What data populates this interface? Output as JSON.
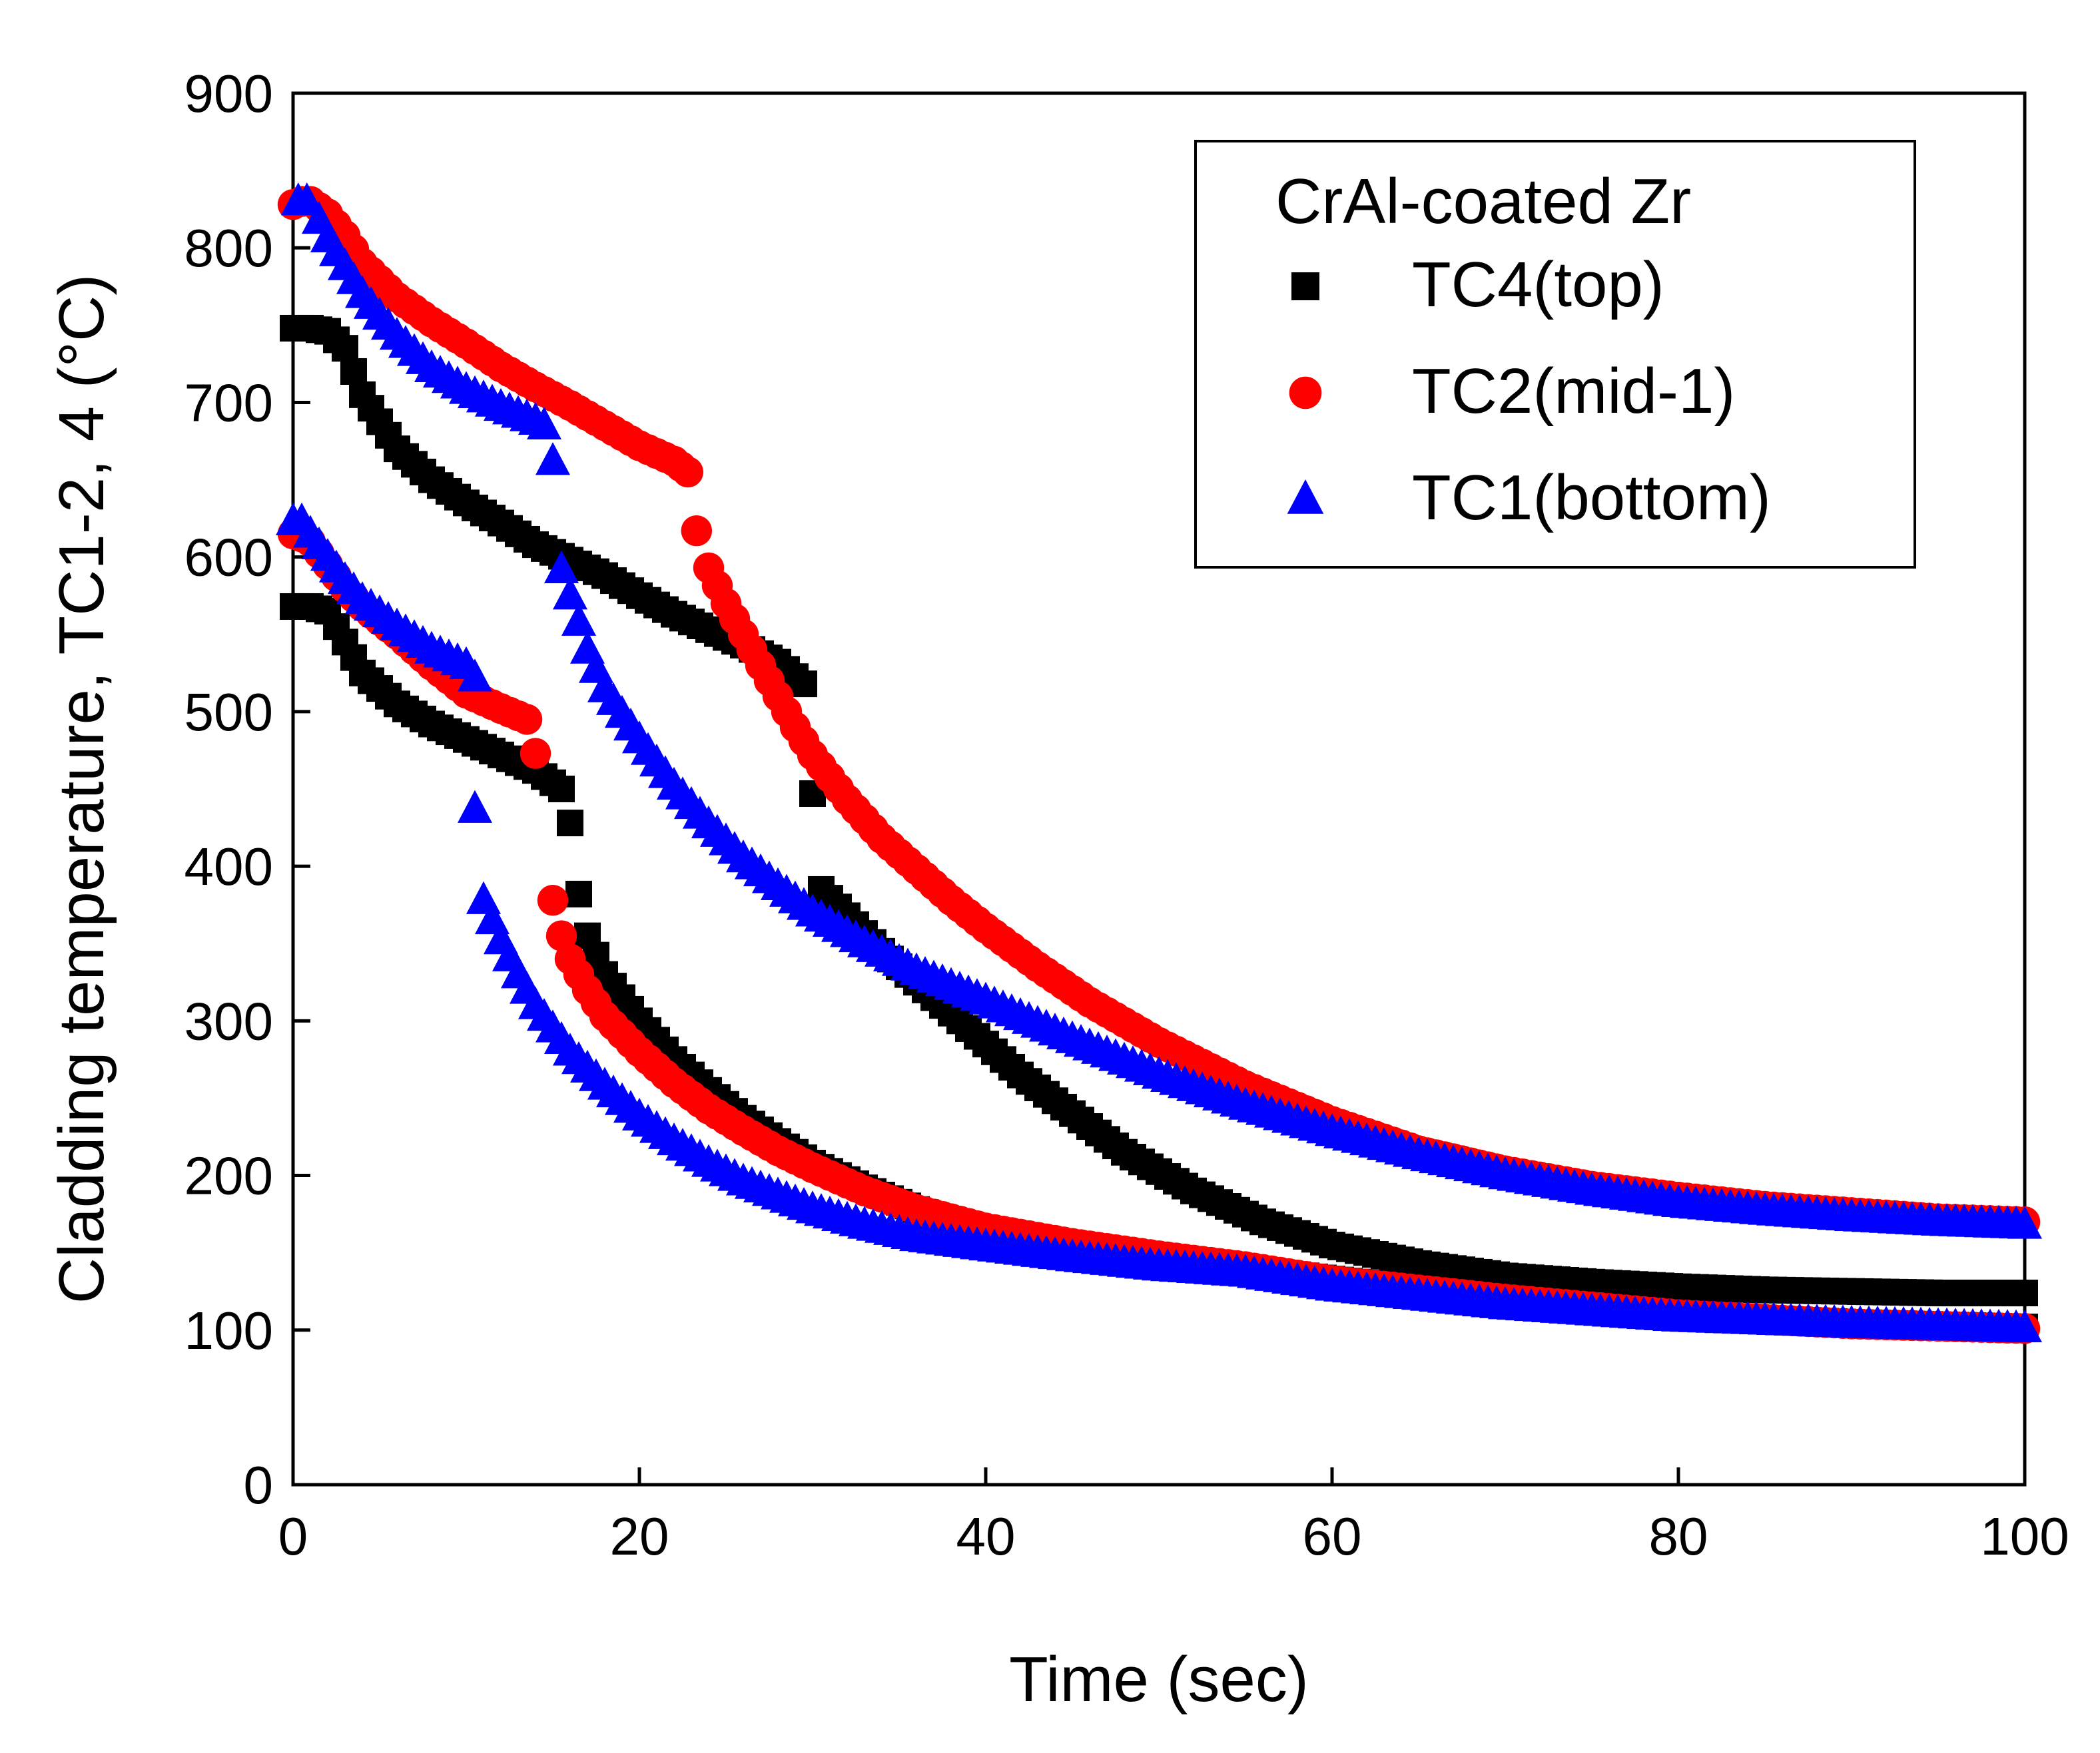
{
  "chart_data": {
    "type": "scatter",
    "title": "",
    "xlabel": "Time (sec)",
    "ylabel": "Cladding temperature,  TC1-2, 4 (°C)",
    "xlim": [
      0,
      100
    ],
    "ylim": [
      0,
      900
    ],
    "xticks": [
      "0",
      "20",
      "40",
      "60",
      "80",
      "100"
    ],
    "yticks": [
      "0",
      "100",
      "200",
      "300",
      "400",
      "500",
      "600",
      "700",
      "800",
      "900"
    ],
    "legend": {
      "title": "CrAl-coated Zr",
      "position": "top-right"
    },
    "series": [
      {
        "name": "TC4(top)",
        "marker": "square",
        "color": "#000000",
        "runs": [
          {
            "x": [
              0,
              1,
              2,
              3,
              4,
              6,
              8,
              10,
              12,
              14,
              16,
              18,
              20,
              22,
              24,
              26,
              28,
              29.5
            ],
            "y": [
              748,
              748,
              746,
              735,
              705,
              670,
              650,
              635,
              622,
              608,
              598,
              588,
              575,
              563,
              553,
              543,
              532,
              518
            ]
          },
          {
            "x": [
              30,
              30.5,
              32,
              34,
              36,
              38,
              40,
              42,
              45,
              48,
              52,
              56,
              60,
              65,
              70,
              75,
              80,
              85,
              90,
              95,
              100
            ],
            "y": [
              447,
              385,
              368,
              345,
              325,
              305,
              285,
              265,
              240,
              215,
              190,
              170,
              155,
              143,
              135,
              131,
              128,
              126,
              125,
              124,
              124
            ]
          },
          {
            "x": [
              0,
              1,
              2,
              3,
              4,
              6,
              8,
              10,
              12,
              14,
              15.5
            ],
            "y": [
              568,
              568,
              565,
              545,
              525,
              505,
              492,
              482,
              472,
              462,
              450
            ]
          },
          {
            "x": [
              16,
              16.5,
              17,
              18,
              20,
              22,
              24,
              26,
              28,
              30,
              33,
              36,
              40,
              45,
              50,
              55,
              60,
              70,
              80,
              90,
              100
            ],
            "y": [
              428,
              382,
              355,
              330,
              300,
              275,
              255,
              237,
              222,
              208,
              192,
              178,
              163,
              152,
              145,
              140,
              133,
              120,
              110,
              105,
              102
            ]
          }
        ]
      },
      {
        "name": "TC2(mid-1)",
        "marker": "circle",
        "color": "#ff0000",
        "runs": [
          {
            "x": [
              0,
              0.5,
              1,
              2,
              3,
              4,
              6,
              8,
              10,
              12,
              14,
              16,
              18,
              20,
              22,
              22.8
            ],
            "y": [
              828,
              830,
              830,
              822,
              808,
              790,
              768,
              752,
              738,
              723,
              710,
              698,
              685,
              672,
              662,
              655
            ]
          },
          {
            "x": [
              23.3,
              24,
              25,
              26,
              27,
              28,
              29,
              30,
              32,
              34,
              36,
              38,
              40,
              43,
              46,
              50,
              55,
              60,
              65,
              70,
              75,
              80,
              85,
              90,
              95,
              100
            ],
            "y": [
              617,
              593,
              570,
              550,
              530,
              510,
              490,
              472,
              443,
              418,
              398,
              378,
              360,
              335,
              312,
              286,
              258,
              235,
              216,
              203,
              193,
              186,
              180,
              176,
              172,
              170
            ]
          },
          {
            "x": [
              0,
              0.5,
              1,
              2,
              3,
              4,
              6,
              8,
              10,
              12,
              13.5,
              14
            ],
            "y": [
              615,
              613,
              610,
              595,
              580,
              568,
              550,
              530,
              512,
              502,
              495,
              473
            ]
          },
          {
            "x": [
              15,
              15.5,
              16,
              17,
              18,
              20,
              22,
              24,
              26,
              28,
              30,
              33,
              36,
              40,
              45,
              50,
              55,
              60,
              70,
              80,
              90,
              100
            ],
            "y": [
              378,
              355,
              340,
              320,
              303,
              280,
              260,
              243,
              229,
              216,
              205,
              190,
              178,
              166,
              156,
              148,
              141,
              132,
              120,
              110,
              104,
              101
            ]
          }
        ]
      },
      {
        "name": "TC1(bottom)",
        "marker": "triangle",
        "color": "#0000ff",
        "runs": [
          {
            "x": [
              0.3,
              0.8,
              1.5,
              2,
              3,
              4,
              5,
              6,
              8,
              10,
              12,
              14,
              14.5
            ],
            "y": [
              830,
              830,
              818,
              806,
              788,
              770,
              756,
              743,
              722,
              708,
              697,
              688,
              685
            ]
          },
          {
            "x": [
              15
            ],
            "y": [
              662
            ]
          },
          {
            "x": [
              15.5,
              16.5,
              17,
              18,
              20,
              22,
              24,
              26,
              28,
              30,
              33,
              36,
              40,
              45,
              50,
              55,
              60,
              65,
              70,
              75,
              80,
              85,
              90,
              95,
              100
            ],
            "y": [
              592,
              558,
              540,
              515,
              482,
              452,
              427,
              405,
              387,
              370,
              350,
              332,
              313,
              288,
              265,
              245,
              228,
              213,
              200,
              190,
              182,
              177,
              173,
              170,
              168
            ]
          },
          {
            "x": [
              0,
              0.5,
              1,
              2,
              3,
              4,
              6,
              8,
              10,
              10.5
            ],
            "y": [
              623,
              623,
              615,
              600,
              585,
              572,
              555,
              540,
              530,
              522
            ]
          },
          {
            "x": [
              10.5
            ],
            "y": [
              437
            ]
          },
          {
            "x": [
              11,
              12,
              13,
              14,
              15,
              16,
              18,
              20,
              22,
              24,
              26,
              28,
              30,
              33,
              36,
              40,
              45,
              50,
              55,
              60,
              70,
              80,
              90,
              100
            ],
            "y": [
              378,
              352,
              330,
              310,
              295,
              280,
              258,
              238,
              222,
              208,
              196,
              187,
              178,
              168,
              160,
              154,
              147,
              141,
              137,
              128,
              116,
              108,
              104,
              101
            ]
          }
        ]
      }
    ]
  }
}
